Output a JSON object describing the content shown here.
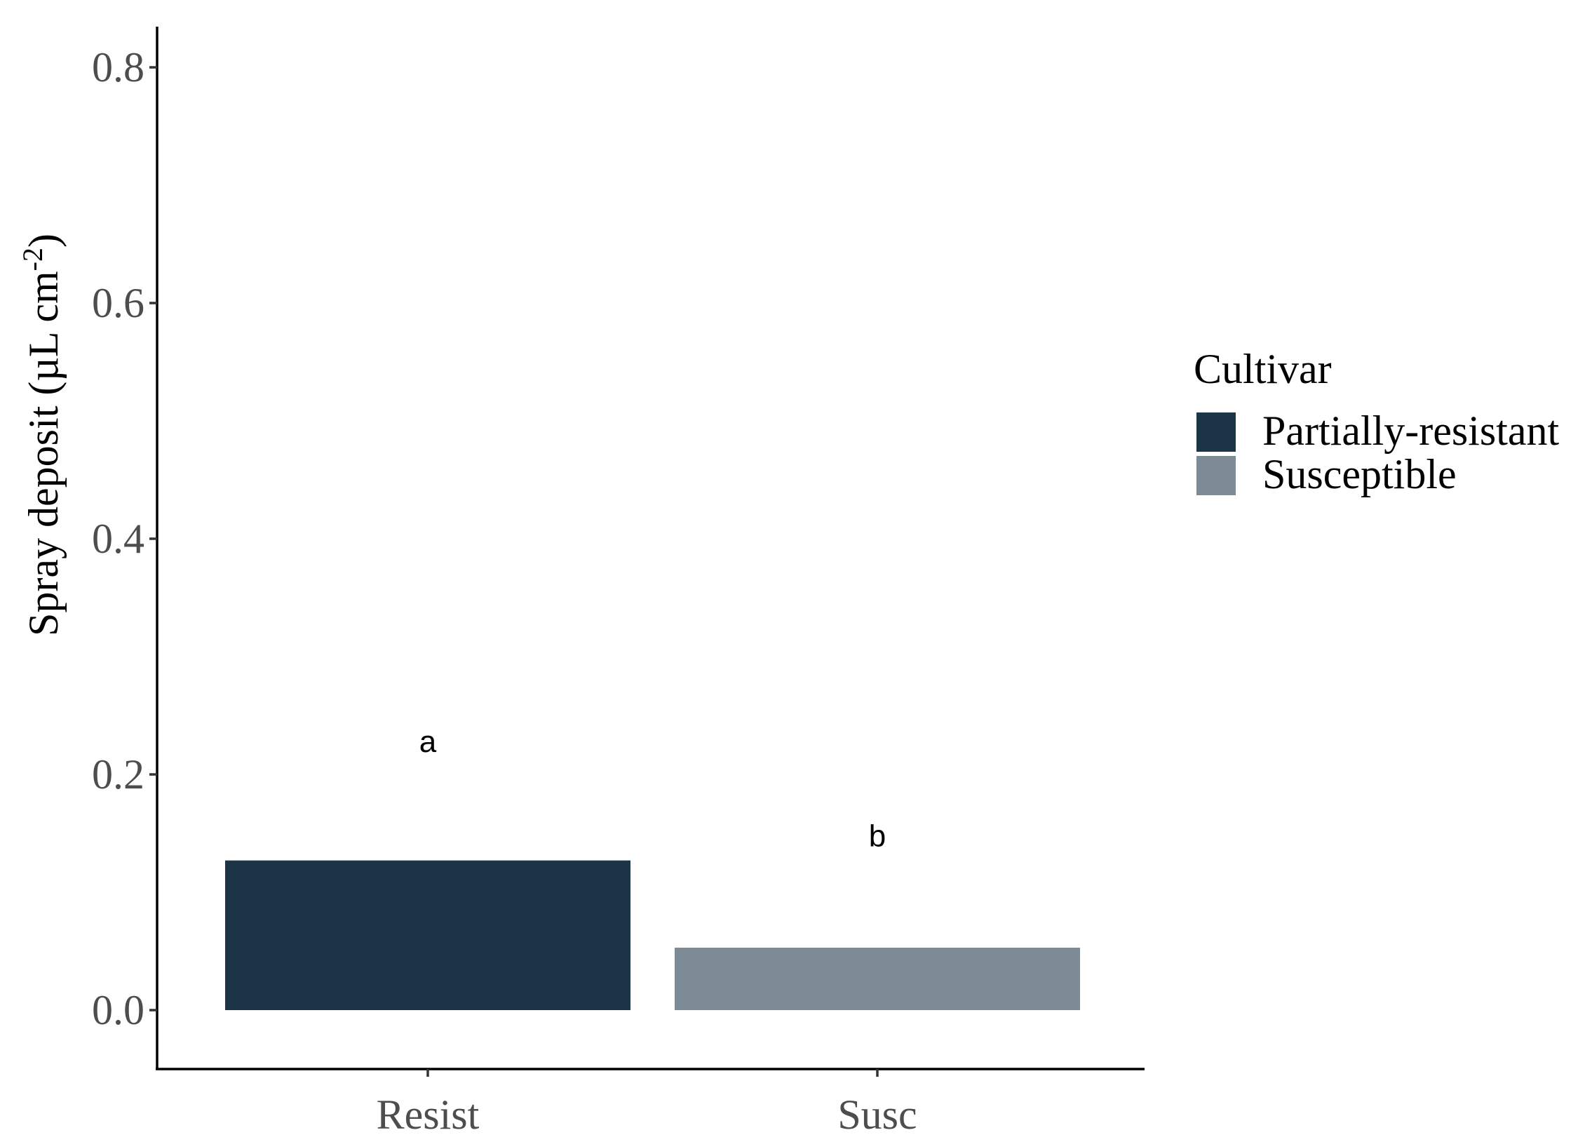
{
  "chart_data": {
    "type": "bar",
    "title": "",
    "xlabel": "",
    "ylabel": "Spray deposit (µL cm",
    "ylabel_superscript": "-2",
    "ylabel_close": ")",
    "ylim": [
      -0.05,
      0.83
    ],
    "yticks": [
      0.0,
      0.2,
      0.4,
      0.6,
      0.8
    ],
    "ytick_labels": [
      "0.0",
      "0.2",
      "0.4",
      "0.6",
      "0.8"
    ],
    "categories": [
      "Resist",
      "Susc"
    ],
    "values": [
      0.127,
      0.053
    ],
    "bar_fills": [
      "#1b3547",
      "#7d8b96"
    ],
    "annotations": [
      "a",
      "b"
    ],
    "annotation_y": [
      0.228,
      0.148
    ],
    "grid": false,
    "legend": {
      "title": "Cultivar",
      "placement": "right",
      "entries": [
        {
          "label": "Partially-resistant",
          "color": "#1b3547"
        },
        {
          "label": "Susceptible",
          "color": "#7d8b96"
        }
      ]
    }
  }
}
